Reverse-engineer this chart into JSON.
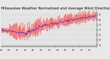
{
  "title": "Milwaukee Weather Normalized and Average Wind Direction (Last 24 Hours)",
  "bg_color": "#e8e8e8",
  "plot_bg_color": "#e8e8e8",
  "grid_color": "#aaaaaa",
  "line_color_avg": "#0000cc",
  "bar_color": "#ff0000",
  "n_points": 144,
  "ylim": [
    -1.2,
    5.8
  ],
  "yticks": [
    5,
    4,
    3,
    2,
    1,
    0,
    -1
  ],
  "ytick_labels": [
    "5",
    "4",
    "3",
    "2",
    "1",
    "0",
    "-1"
  ],
  "title_fontsize": 3.8,
  "tick_fontsize": 3.0,
  "linewidth_avg": 0.5,
  "bar_linewidth": 0.35,
  "n_xticks": 48
}
